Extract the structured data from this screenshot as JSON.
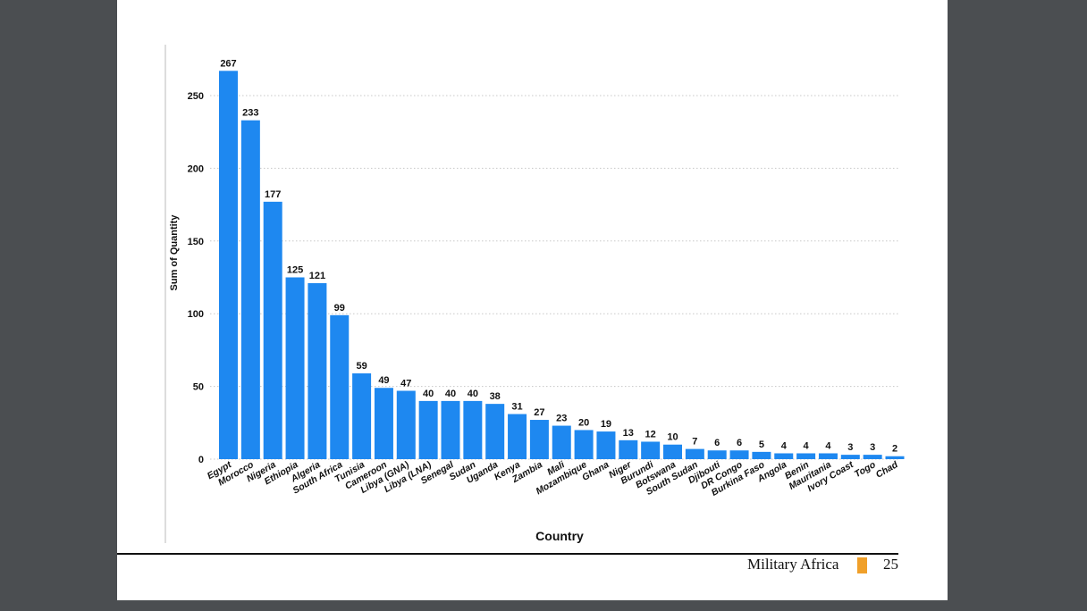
{
  "chart_data": {
    "type": "bar",
    "title": "",
    "xlabel": "Country",
    "ylabel": "Sum of Quantity",
    "ylim": [
      0,
      270
    ],
    "yticks": [
      0,
      50,
      100,
      150,
      200,
      250
    ],
    "grid": true,
    "bar_color": "#1e88f0",
    "categories": [
      "Egypt",
      "Morocco",
      "Nigeria",
      "Ethiopia",
      "Algeria",
      "South Africa",
      "Tunisia",
      "Cameroon",
      "Libya (GNA)",
      "Libya (LNA)",
      "Senegal",
      "Sudan",
      "Uganda",
      "Kenya",
      "Zambia",
      "Mali",
      "Mozambique",
      "Ghana",
      "Niger",
      "Burundi",
      "Botswana",
      "South Sudan",
      "Djibouti",
      "DR Congo",
      "Burkina Faso",
      "Angola",
      "Benin",
      "Mauritania",
      "Ivory Coast",
      "Togo",
      "Chad"
    ],
    "values": [
      267,
      233,
      177,
      125,
      121,
      99,
      59,
      49,
      47,
      40,
      40,
      40,
      38,
      31,
      27,
      23,
      20,
      19,
      13,
      12,
      10,
      7,
      6,
      6,
      5,
      4,
      4,
      4,
      3,
      3,
      2
    ]
  },
  "footer": {
    "title": "Military Africa",
    "page": "25",
    "accent": "#f0a02a"
  }
}
